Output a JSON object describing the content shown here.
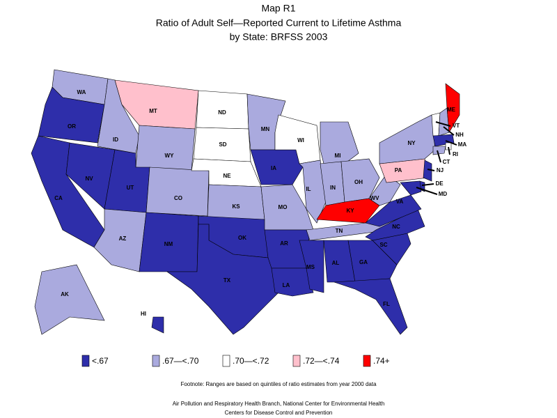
{
  "title": [
    "Map R1",
    "Ratio of Adult Self—Reported Current to Lifetime Asthma",
    "by State: BRFSS 2003"
  ],
  "legend": [
    {
      "label": "<.67",
      "color": "#2e2eaa"
    },
    {
      "label": ".67—<.70",
      "color": "#aaaade"
    },
    {
      "label": ".70—<.72",
      "color": "#ffffff"
    },
    {
      "label": ".72—<.74",
      "color": "#ffc0cc"
    },
    {
      "label": ".74+",
      "color": "#ff0000"
    }
  ],
  "states": [
    {
      "label": "WA",
      "class": 1
    },
    {
      "label": "OR",
      "class": 0
    },
    {
      "label": "CA",
      "class": 0
    },
    {
      "label": "NV",
      "class": 0
    },
    {
      "label": "ID",
      "class": 1
    },
    {
      "label": "MT",
      "class": 3
    },
    {
      "label": "WY",
      "class": 1
    },
    {
      "label": "UT",
      "class": 0
    },
    {
      "label": "AZ",
      "class": 1
    },
    {
      "label": "CO",
      "class": 1
    },
    {
      "label": "NM",
      "class": 0
    },
    {
      "label": "ND",
      "class": 2
    },
    {
      "label": "SD",
      "class": 2
    },
    {
      "label": "NE",
      "class": 2
    },
    {
      "label": "KS",
      "class": 1
    },
    {
      "label": "OK",
      "class": 0
    },
    {
      "label": "TX",
      "class": 0
    },
    {
      "label": "MN",
      "class": 1
    },
    {
      "label": "IA",
      "class": 0
    },
    {
      "label": "MO",
      "class": 1
    },
    {
      "label": "AR",
      "class": 0
    },
    {
      "label": "LA",
      "class": 0
    },
    {
      "label": "WI",
      "class": 2
    },
    {
      "label": "IL",
      "class": 1
    },
    {
      "label": "MI",
      "class": 1
    },
    {
      "label": "IN",
      "class": 1
    },
    {
      "label": "OH",
      "class": 1
    },
    {
      "label": "KY",
      "class": 4
    },
    {
      "label": "TN",
      "class": 1
    },
    {
      "label": "MS",
      "class": 0
    },
    {
      "label": "AL",
      "class": 0
    },
    {
      "label": "GA",
      "class": 0
    },
    {
      "label": "FL",
      "class": 0
    },
    {
      "label": "SC",
      "class": 0
    },
    {
      "label": "NC",
      "class": 0
    },
    {
      "label": "VA",
      "class": 0
    },
    {
      "label": "WV",
      "class": 1
    },
    {
      "label": "PA",
      "class": 3
    },
    {
      "label": "NY",
      "class": 1
    },
    {
      "label": "VT",
      "class": 2
    },
    {
      "label": "NH",
      "class": 1
    },
    {
      "label": "ME",
      "class": 4
    },
    {
      "label": "MA",
      "class": 0
    },
    {
      "label": "RI",
      "class": 2
    },
    {
      "label": "CT",
      "class": 1
    },
    {
      "label": "NJ",
      "class": 0
    },
    {
      "label": "DE",
      "class": 0
    },
    {
      "label": "MD",
      "class": 0
    },
    {
      "label": "AK",
      "class": 1
    },
    {
      "label": "HI",
      "class": 0
    }
  ],
  "footnote": "Footnote: Ranges are based on quintiles of ratio estimates from year 2000 data",
  "source": [
    "Air Pollution and Respiratory Health Branch, National Center for Environmental Health",
    "Centers for Disease Control and Prevention"
  ]
}
